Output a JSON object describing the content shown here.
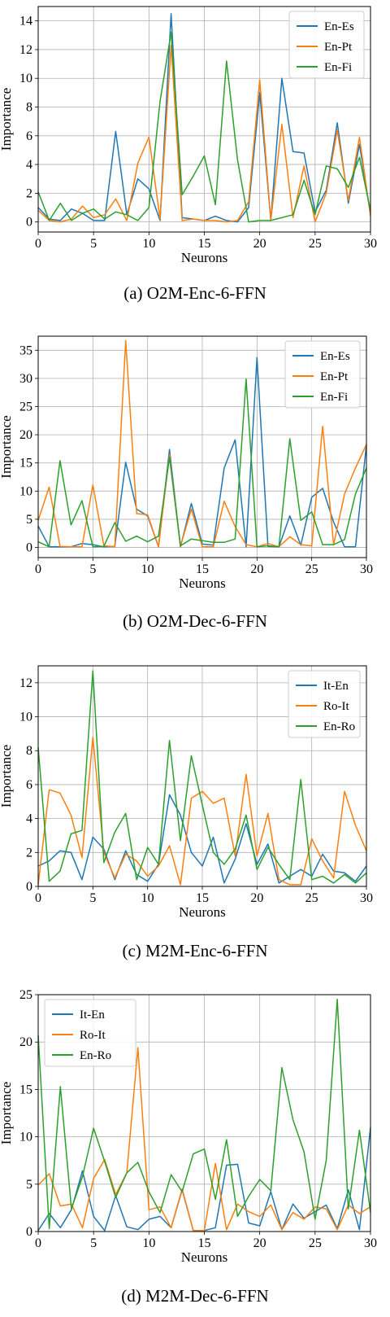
{
  "chart_data": [
    {
      "type": "line",
      "caption": "(a)  O2M-Enc-6-FFN",
      "xlabel": "Neurons",
      "ylabel": "Importance",
      "xlim": [
        0,
        30
      ],
      "ylim": [
        -0.7,
        15
      ],
      "xticks": [
        0,
        5,
        10,
        15,
        20,
        25,
        30
      ],
      "yticks": [
        0,
        2,
        4,
        6,
        8,
        10,
        12,
        14
      ],
      "grid": true,
      "legend_position": "top-right",
      "x": [
        0,
        1,
        2,
        3,
        4,
        5,
        6,
        7,
        8,
        9,
        10,
        11,
        12,
        13,
        14,
        15,
        16,
        17,
        18,
        19,
        20,
        21,
        22,
        23,
        24,
        25,
        26,
        27,
        28,
        29,
        30
      ],
      "series": [
        {
          "name": "En-Es",
          "color": "#1f77b4",
          "values": [
            1.0,
            0.2,
            0.1,
            0.9,
            0.6,
            0.1,
            0.1,
            6.3,
            0.5,
            3.0,
            2.3,
            0.1,
            14.5,
            0.3,
            0.2,
            0.1,
            0.4,
            0.1,
            0.0,
            1.0,
            9.0,
            0.1,
            10.0,
            4.9,
            4.8,
            0.7,
            2.2,
            6.9,
            1.3,
            5.4,
            0.5
          ]
        },
        {
          "name": "En-Pt",
          "color": "#ff7f0e",
          "values": [
            0.8,
            0.1,
            0.0,
            0.2,
            1.1,
            0.3,
            0.5,
            1.6,
            0.1,
            4.1,
            5.9,
            0.2,
            12.3,
            0.1,
            0.2,
            0.1,
            0.1,
            0.0,
            0.1,
            1.4,
            9.9,
            0.1,
            6.8,
            0.3,
            3.9,
            0.0,
            2.0,
            6.4,
            1.5,
            5.9,
            0.4
          ]
        },
        {
          "name": "En-Fi",
          "color": "#2ca02c",
          "values": [
            2.1,
            0.1,
            1.3,
            0.1,
            0.6,
            0.9,
            0.2,
            0.7,
            0.5,
            0.1,
            1.0,
            8.4,
            13.2,
            1.9,
            3.2,
            4.6,
            1.2,
            11.2,
            4.3,
            0.0,
            0.1,
            0.1,
            0.3,
            0.5,
            2.9,
            0.5,
            3.9,
            3.7,
            2.4,
            4.5,
            0.8
          ]
        }
      ]
    },
    {
      "type": "line",
      "caption": "(b)  O2M-Dec-6-FFN",
      "xlabel": "Neurons",
      "ylabel": "Importance",
      "xlim": [
        0,
        30
      ],
      "ylim": [
        -1.8,
        37.5
      ],
      "xticks": [
        0,
        5,
        10,
        15,
        20,
        25,
        30
      ],
      "yticks": [
        0,
        5,
        10,
        15,
        20,
        25,
        30,
        35
      ],
      "grid": true,
      "legend_position": "top-right",
      "x": [
        0,
        1,
        2,
        3,
        4,
        5,
        6,
        7,
        8,
        9,
        10,
        11,
        12,
        13,
        14,
        15,
        16,
        17,
        18,
        19,
        20,
        21,
        22,
        23,
        24,
        25,
        26,
        27,
        28,
        29,
        30
      ],
      "series": [
        {
          "name": "En-Es",
          "color": "#1f77b4",
          "values": [
            3.8,
            0.1,
            0.1,
            0.1,
            0.7,
            0.5,
            0.1,
            0.2,
            15.1,
            6.8,
            5.6,
            0.1,
            17.4,
            0.1,
            7.8,
            0.6,
            0.4,
            14.1,
            19.1,
            0.1,
            33.7,
            0.2,
            0.1,
            5.6,
            0.4,
            8.9,
            10.5,
            4.5,
            0.1,
            0.1,
            18.2
          ]
        },
        {
          "name": "En-Pt",
          "color": "#ff7f0e",
          "values": [
            4.8,
            10.7,
            0.2,
            0.1,
            0.1,
            11.1,
            0.3,
            0.1,
            36.7,
            6.0,
            5.8,
            0.1,
            16.5,
            0.2,
            6.8,
            0.1,
            0.1,
            8.2,
            3.7,
            0.5,
            0.1,
            0.7,
            0.1,
            1.9,
            0.5,
            0.3,
            21.5,
            0.5,
            9.5,
            14.1,
            18.3
          ]
        },
        {
          "name": "En-Fi",
          "color": "#2ca02c",
          "values": [
            1.0,
            0.1,
            15.4,
            4.0,
            8.3,
            0.1,
            0.2,
            4.4,
            1.1,
            2.0,
            1.0,
            2.0,
            16.0,
            0.3,
            1.5,
            1.2,
            0.9,
            0.9,
            1.5,
            29.9,
            0.1,
            0.3,
            0.1,
            19.3,
            4.8,
            6.3,
            0.5,
            0.5,
            1.4,
            9.5,
            14.1
          ]
        }
      ]
    },
    {
      "type": "line",
      "caption": "(c)  M2M-Enc-6-FFN",
      "xlabel": "Neurons",
      "ylabel": "Importance",
      "xlim": [
        0,
        30
      ],
      "ylim": [
        0,
        13
      ],
      "xticks": [
        0,
        5,
        10,
        15,
        20,
        25,
        30
      ],
      "yticks": [
        0,
        2,
        4,
        6,
        8,
        10,
        12
      ],
      "grid": true,
      "legend_position": "top-right",
      "x": [
        0,
        1,
        2,
        3,
        4,
        5,
        6,
        7,
        8,
        9,
        10,
        11,
        12,
        13,
        14,
        15,
        16,
        17,
        18,
        19,
        20,
        21,
        22,
        23,
        24,
        25,
        26,
        27,
        28,
        29,
        30
      ],
      "series": [
        {
          "name": "It-En",
          "color": "#1f77b4",
          "values": [
            1.2,
            1.5,
            2.1,
            2.0,
            0.4,
            2.9,
            2.2,
            0.4,
            2.1,
            0.7,
            0.3,
            1.3,
            5.4,
            4.2,
            2.0,
            1.2,
            2.9,
            0.2,
            1.6,
            3.7,
            1.3,
            2.5,
            0.2,
            0.6,
            1.0,
            0.6,
            1.9,
            0.9,
            0.8,
            0.3,
            1.2
          ]
        },
        {
          "name": "Ro-It",
          "color": "#ff7f0e",
          "values": [
            0.1,
            5.7,
            5.5,
            4.2,
            1.7,
            8.8,
            2.0,
            0.5,
            1.9,
            1.5,
            0.6,
            1.2,
            2.4,
            0.1,
            5.2,
            5.6,
            4.9,
            5.2,
            1.8,
            6.6,
            1.8,
            4.3,
            0.4,
            0.1,
            0.1,
            2.8,
            1.5,
            0.5,
            5.6,
            3.6,
            2.1
          ]
        },
        {
          "name": "En-Ro",
          "color": "#2ca02c",
          "values": [
            8.2,
            0.3,
            0.9,
            3.1,
            3.3,
            12.7,
            1.4,
            3.2,
            4.3,
            0.4,
            2.3,
            1.3,
            8.6,
            2.7,
            7.7,
            4.8,
            2.0,
            1.3,
            2.2,
            4.2,
            1.0,
            2.3,
            1.3,
            0.4,
            6.3,
            0.4,
            0.6,
            0.2,
            0.7,
            0.2,
            0.8
          ]
        }
      ]
    },
    {
      "type": "line",
      "caption": "(d)  M2M-Dec-6-FFN",
      "xlabel": "Neurons",
      "ylabel": "Importance",
      "xlim": [
        0,
        30
      ],
      "ylim": [
        0,
        25
      ],
      "xticks": [
        0,
        5,
        10,
        15,
        20,
        25,
        30
      ],
      "yticks": [
        0,
        5,
        10,
        15,
        20,
        25
      ],
      "grid": true,
      "legend_position": "top-left",
      "x": [
        0,
        1,
        2,
        3,
        4,
        5,
        6,
        7,
        8,
        9,
        10,
        11,
        12,
        13,
        14,
        15,
        16,
        17,
        18,
        19,
        20,
        21,
        22,
        23,
        24,
        25,
        26,
        27,
        28,
        29,
        30
      ],
      "series": [
        {
          "name": "It-En",
          "color": "#1f77b4",
          "values": [
            0.1,
            1.9,
            0.4,
            2.3,
            6.4,
            1.6,
            0.1,
            3.8,
            0.5,
            0.2,
            1.3,
            1.6,
            0.4,
            4.4,
            0.1,
            0.1,
            0.4,
            7.0,
            7.1,
            0.9,
            0.6,
            4.2,
            0.2,
            2.9,
            1.4,
            2.1,
            2.8,
            0.3,
            4.4,
            0.2,
            11.0
          ]
        },
        {
          "name": "Ro-It",
          "color": "#ff7f0e",
          "values": [
            4.9,
            6.1,
            2.7,
            2.9,
            0.4,
            5.6,
            7.6,
            3.9,
            6.2,
            19.4,
            2.3,
            2.6,
            0.4,
            4.5,
            0.1,
            0.1,
            7.2,
            0.2,
            2.9,
            2.1,
            1.6,
            2.8,
            0.2,
            2.0,
            1.3,
            2.6,
            2.4,
            0.2,
            2.8,
            1.9,
            2.6
          ]
        },
        {
          "name": "En-Ro",
          "color": "#2ca02c",
          "values": [
            20.7,
            0.3,
            15.3,
            2.4,
            5.8,
            10.9,
            7.4,
            3.6,
            6.2,
            7.3,
            4.2,
            2.0,
            6.0,
            4.2,
            8.2,
            8.7,
            3.4,
            9.7,
            1.6,
            3.7,
            5.5,
            4.3,
            17.3,
            11.8,
            8.4,
            1.3,
            7.5,
            24.5,
            2.4,
            10.7,
            2.0
          ]
        }
      ]
    }
  ]
}
